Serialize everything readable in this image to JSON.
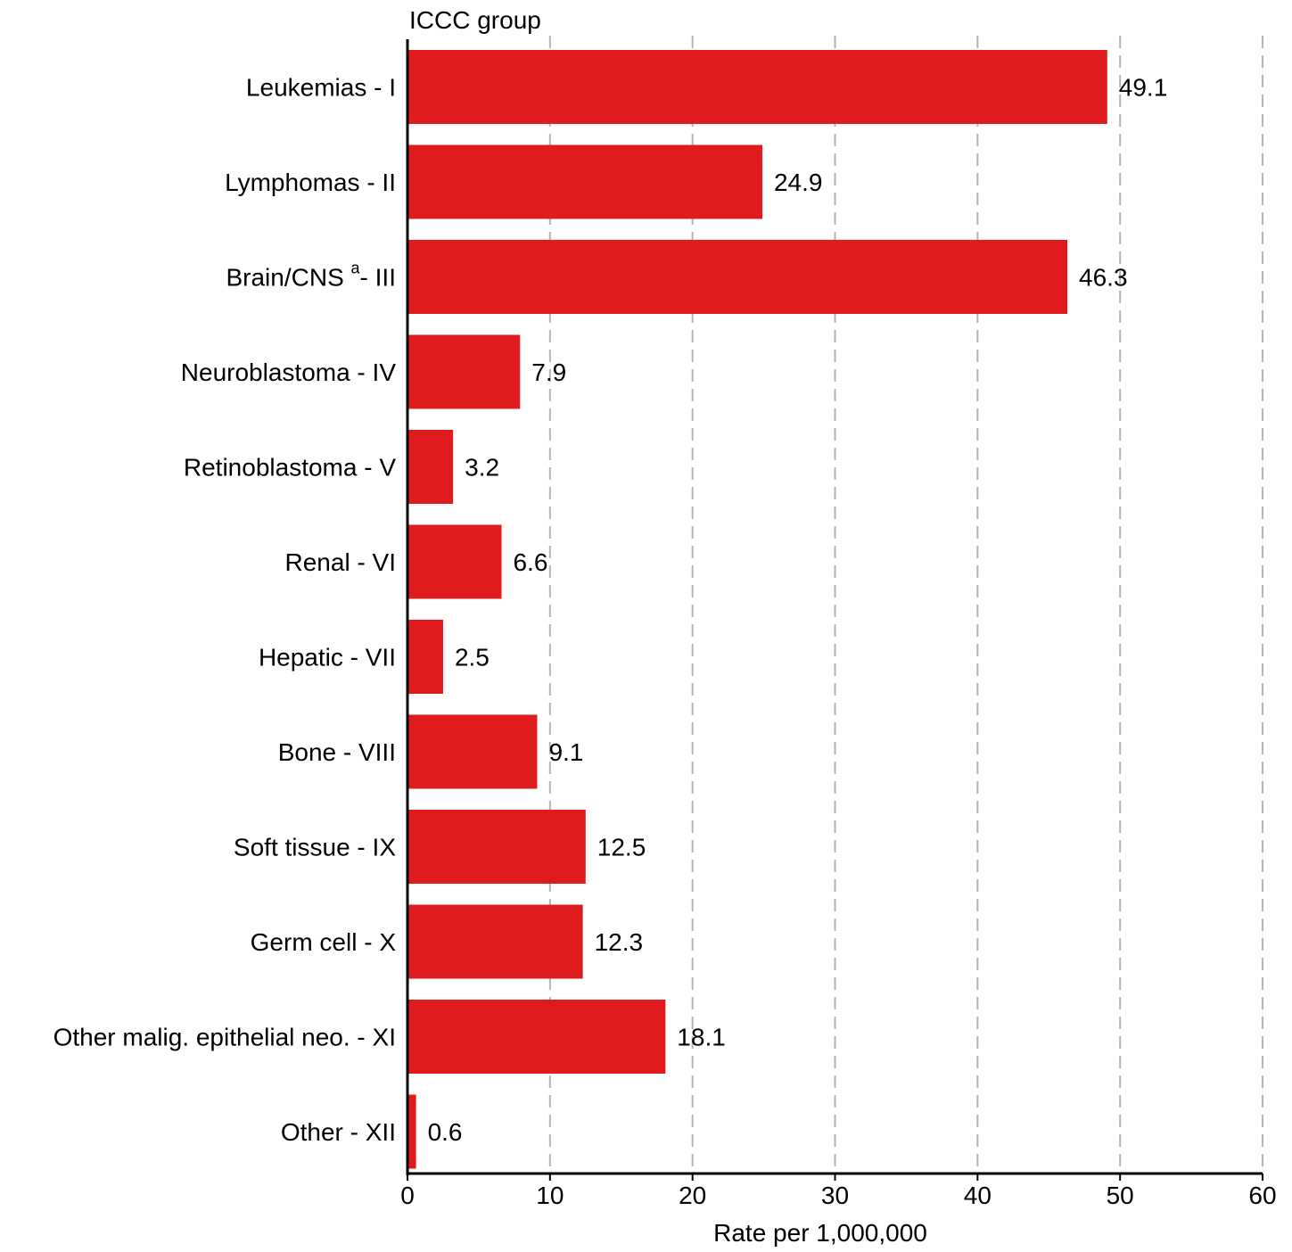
{
  "chart_data": {
    "type": "bar",
    "orientation": "horizontal",
    "title": "",
    "y_axis_title": "ICCC group",
    "xlabel": "Rate per 1,000,000",
    "xlim": [
      0,
      60
    ],
    "xticks": [
      0,
      10,
      20,
      30,
      40,
      50,
      60
    ],
    "grid": "vertical dashed",
    "bar_color": "#e01b1d",
    "categories": [
      {
        "name": "Leukemias - I",
        "superscript": ""
      },
      {
        "name": "Lymphomas - II",
        "superscript": ""
      },
      {
        "name": "Brain/CNS - III",
        "prefix": "Brain/CNS",
        "superscript": "a",
        "suffix": "- III"
      },
      {
        "name": "Neuroblastoma - IV",
        "superscript": ""
      },
      {
        "name": "Retinoblastoma - V",
        "superscript": ""
      },
      {
        "name": "Renal - VI",
        "superscript": ""
      },
      {
        "name": "Hepatic - VII",
        "superscript": ""
      },
      {
        "name": "Bone - VIII",
        "superscript": ""
      },
      {
        "name": "Soft tissue  - IX",
        "superscript": ""
      },
      {
        "name": "Germ cell - X",
        "superscript": ""
      },
      {
        "name": "Other malig. epithelial neo. - XI",
        "superscript": ""
      },
      {
        "name": "Other - XII",
        "superscript": ""
      }
    ],
    "values": [
      49.1,
      24.9,
      46.3,
      7.9,
      3.2,
      6.6,
      2.5,
      9.1,
      12.5,
      12.3,
      18.1,
      0.6
    ],
    "value_labels": [
      "49.1",
      "24.9",
      "46.3",
      "7.9",
      "3.2",
      "6.6",
      "2.5",
      "9.1",
      "12.5",
      "12.3",
      "18.1",
      "0.6"
    ]
  }
}
